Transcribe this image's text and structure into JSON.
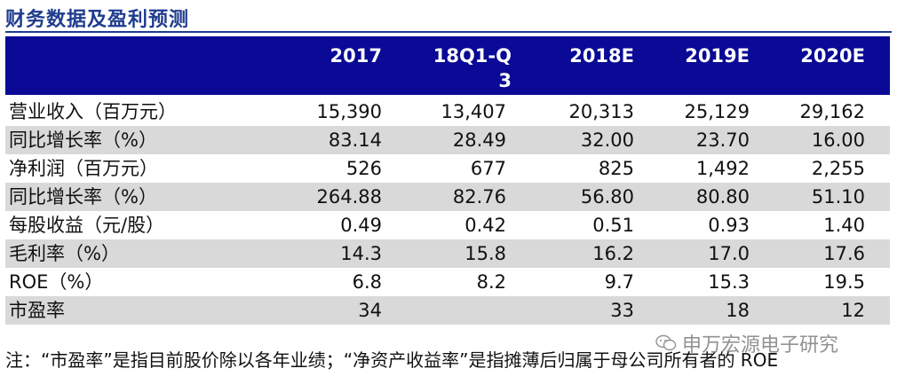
{
  "title": "财务数据及盈利预测",
  "columns": [
    "2017",
    "18Q1-Q\n3",
    "2018E",
    "2019E",
    "2020E"
  ],
  "rows": [
    {
      "label": "营业收入（百万元）",
      "values": [
        "15,390",
        "13,407",
        "20,313",
        "25,129",
        "29,162"
      ]
    },
    {
      "label": "同比增长率（%）",
      "values": [
        "83.14",
        "28.49",
        "32.00",
        "23.70",
        "16.00"
      ]
    },
    {
      "label": "净利润（百万元）",
      "values": [
        "526",
        "677",
        "825",
        "1,492",
        "2,255"
      ]
    },
    {
      "label": "同比增长率（%）",
      "values": [
        "264.88",
        "82.76",
        "56.80",
        "80.80",
        "51.10"
      ]
    },
    {
      "label": "每股收益（元/股）",
      "values": [
        "0.49",
        "0.42",
        "0.51",
        "0.93",
        "1.40"
      ]
    },
    {
      "label": "毛利率（%）",
      "values": [
        "14.3",
        "15.8",
        "16.2",
        "17.0",
        "17.6"
      ]
    },
    {
      "label": "ROE（%）",
      "values": [
        "6.8",
        "8.2",
        "9.7",
        "15.3",
        "19.5"
      ]
    },
    {
      "label": "市盈率",
      "values": [
        "34",
        "",
        "33",
        "18",
        "12"
      ]
    }
  ],
  "note": "注：“市盈率”是指目前股价除以各年业绩；“净资产收益率”是指摊薄后归属于母公司所有者的 ROE",
  "watermark": "申万宏源电子研究",
  "watermark_icon": "wechat-icon"
}
